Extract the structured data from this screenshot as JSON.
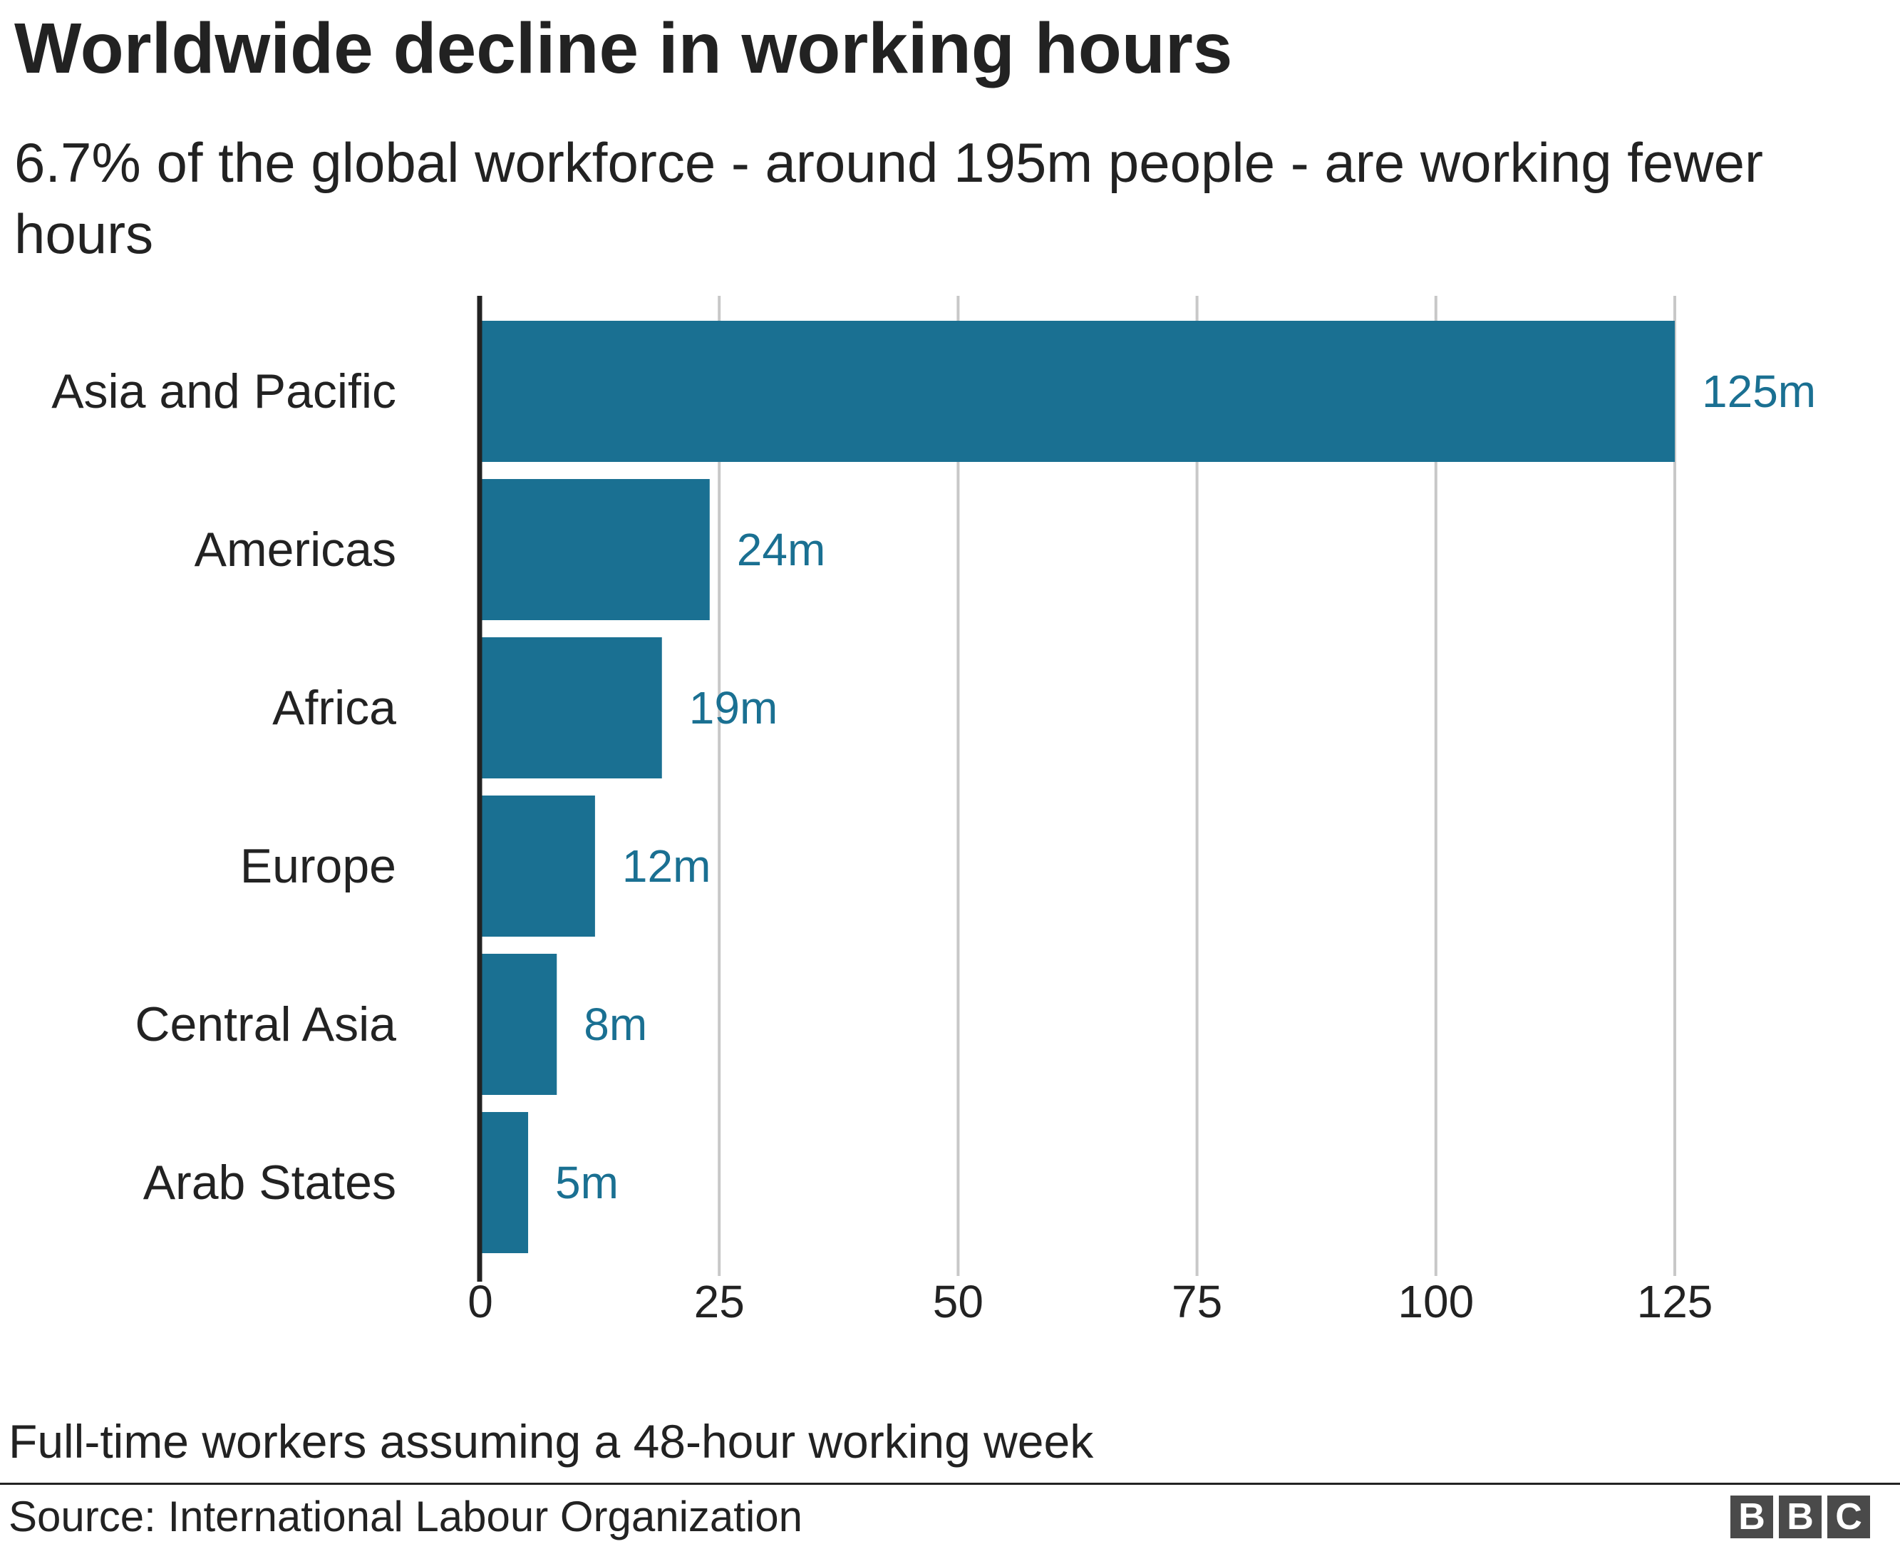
{
  "title": "Worldwide decline in working hours",
  "subtitle": "6.7% of the global workforce - around 195m people - are working fewer hours",
  "footnote": "Full-time workers assuming a 48-hour working week",
  "source": "Source: International Labour Organization",
  "logo": {
    "letters": [
      "B",
      "B",
      "C"
    ]
  },
  "colors": {
    "bar": "#1a7092",
    "value_label": "#1a7092",
    "grid": "#c8c8c8",
    "axis": "#222222"
  },
  "chart_data": {
    "type": "bar",
    "orientation": "horizontal",
    "categories": [
      "Asia and Pacific",
      "Americas",
      "Africa",
      "Europe",
      "Central Asia",
      "Arab States"
    ],
    "values": [
      125,
      24,
      19,
      12,
      8,
      5
    ],
    "value_labels": [
      "125m",
      "24m",
      "19m",
      "12m",
      "8m",
      "5m"
    ],
    "xlim": [
      0,
      140
    ],
    "xticks": [
      0,
      25,
      50,
      75,
      100,
      125
    ],
    "xtick_labels": [
      "0",
      "25",
      "50",
      "75",
      "100",
      "125"
    ],
    "grid": true,
    "legend": "none"
  }
}
